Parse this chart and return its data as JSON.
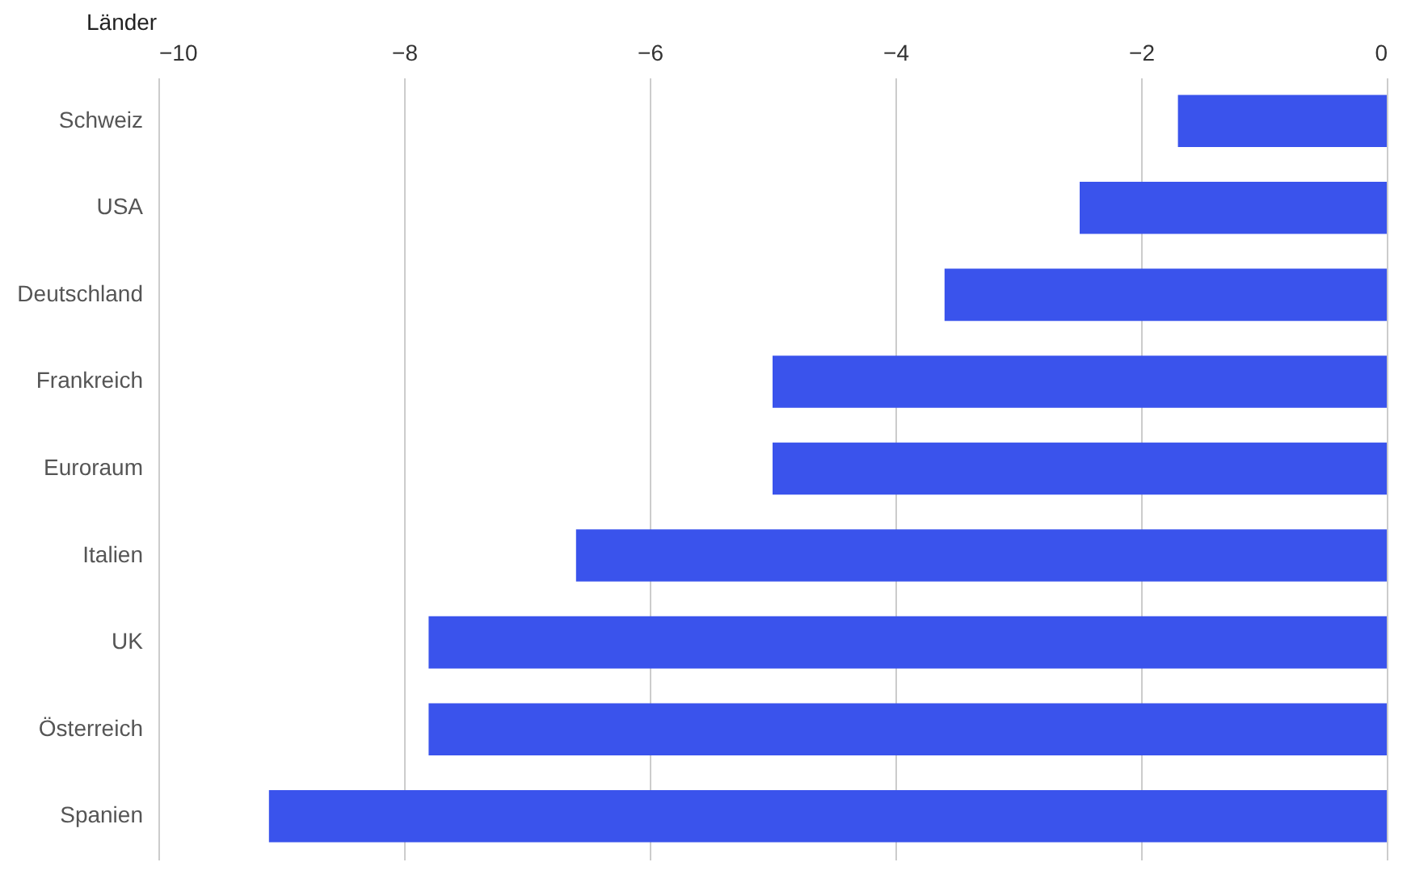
{
  "chart_data": {
    "type": "bar",
    "orientation": "horizontal",
    "ylabel": "Länder",
    "categories": [
      "Schweiz",
      "USA",
      "Deutschland",
      "Frankreich",
      "Euroraum",
      "Italien",
      "UK",
      "Österreich",
      "Spanien"
    ],
    "series": [
      {
        "color": "#3a53ec",
        "values": [
          -1.7,
          -2.5,
          -3.6,
          -5.0,
          -5.0,
          -6.6,
          -7.8,
          -7.8,
          -9.1
        ]
      }
    ],
    "xlim": [
      -10,
      0
    ],
    "xticks": [
      -10,
      -8,
      -6,
      -4,
      -2,
      0
    ],
    "grid": "x"
  }
}
